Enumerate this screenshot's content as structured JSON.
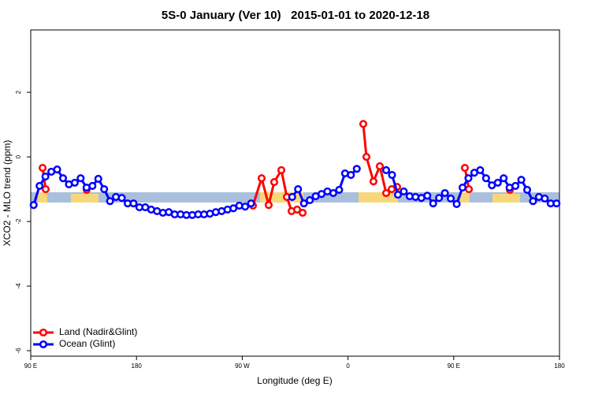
{
  "chart_data": {
    "type": "line",
    "title": "5S-0 January (Ver 10)   2015-01-01 to 2020-12-18",
    "xlabel": "Longitude (deg E)",
    "ylabel": "XCO2 - MLO trend (ppm)",
    "xlim": [
      90,
      540
    ],
    "ylim": [
      -6.17,
      3.93
    ],
    "xticks": [
      {
        "value": 90,
        "label": "90 E"
      },
      180,
      {
        "value": 270,
        "label": "90 W"
      },
      {
        "value": 360,
        "label": "0"
      },
      {
        "value": 450,
        "label": "90 E"
      },
      {
        "value": 540,
        "label": "180"
      }
    ],
    "yticks": [
      2,
      0,
      -2,
      -4,
      -6
    ],
    "legend": "bottom-left",
    "series": [
      {
        "name": "Land (Nadir&Glint)",
        "color": "#ff0000",
        "x": [
          100.1,
          102.7,
          null,
          137.6,
          null,
          279.1,
          286.5,
          292.5,
          297.2,
          303.3,
          308.0,
          312.0,
          316.7,
          321.4,
          null,
          373.0,
          375.7,
          381.7,
          387.1,
          392.5,
          397.2,
          401.8,
          null,
          459.5,
          462.9,
          null,
          497.8
        ],
        "values": [
          -0.34,
          -1.0,
          null,
          -1.02,
          null,
          -1.51,
          -0.66,
          -1.49,
          -0.78,
          -0.41,
          -1.24,
          -1.68,
          -1.63,
          -1.73,
          null,
          1.02,
          0,
          -0.76,
          -0.29,
          -1.12,
          -1.0,
          -0.93,
          null,
          -0.34,
          -1.0,
          null,
          -1.02
        ]
      },
      {
        "name": "Ocean (Glint)",
        "color": "#0000ff",
        "x": [
          92.5,
          97.5,
          102.5,
          107.5,
          112.5,
          117.5,
          122.5,
          127.5,
          132.5,
          137.5,
          142.5,
          147.5,
          152.5,
          157.5,
          162.5,
          167.5,
          172.5,
          177.5,
          182.5,
          187.5,
          192.5,
          197.5,
          202.5,
          207.5,
          212.5,
          217.5,
          222.5,
          227.5,
          232.5,
          237.5,
          242.5,
          247.5,
          252.5,
          257.5,
          262.5,
          267.5,
          272.5,
          277.5,
          282.5,
          287.5,
          292.5,
          297.5,
          302.5,
          307.5,
          312.5,
          317.5,
          322.5,
          327.5,
          332.5,
          337.5,
          342.5,
          347.5,
          352.5,
          357.5,
          362.5,
          367.5,
          372.5,
          377.5,
          382.5,
          387.5,
          392.5,
          397.5,
          402.5,
          407.5,
          412.5,
          417.5,
          422.5,
          427.5,
          432.5,
          437.5,
          442.5,
          447.5,
          452.5,
          457.5,
          462.5,
          467.5,
          472.5,
          477.5,
          482.5,
          487.5,
          492.5,
          497.5,
          502.5,
          507.5,
          512.5,
          517.5,
          522.5,
          527.5,
          532.5,
          537.5
        ],
        "values": [
          -1.49,
          -0.9,
          -0.61,
          -0.46,
          -0.39,
          -0.66,
          -0.85,
          -0.8,
          -0.66,
          -0.95,
          -0.9,
          -0.68,
          -1.0,
          -1.37,
          -1.24,
          -1.27,
          -1.44,
          -1.44,
          -1.56,
          -1.56,
          -1.63,
          -1.68,
          -1.73,
          -1.71,
          -1.78,
          -1.78,
          -1.8,
          -1.8,
          -1.78,
          -1.78,
          -1.76,
          -1.71,
          -1.68,
          -1.63,
          -1.59,
          -1.51,
          -1.54,
          -1.44,
          null,
          null,
          null,
          null,
          null,
          null,
          -1.24,
          -1.0,
          -1.44,
          -1.34,
          -1.22,
          -1.15,
          -1.07,
          -1.12,
          -1.02,
          -0.51,
          -0.56,
          -0.37,
          null,
          null,
          null,
          null,
          -0.41,
          -0.56,
          -1.17,
          -1.07,
          -1.22,
          -1.24,
          -1.27,
          -1.2,
          -1.44,
          -1.27,
          -1.12,
          -1.29,
          -1.46,
          -0.95,
          -0.66,
          -0.49,
          -0.41,
          -0.66,
          -0.88,
          -0.8,
          -0.66,
          -0.95,
          -0.9,
          -0.71,
          -1.02,
          -1.37,
          -1.24,
          -1.29,
          -1.44,
          -1.44
        ]
      }
    ]
  }
}
